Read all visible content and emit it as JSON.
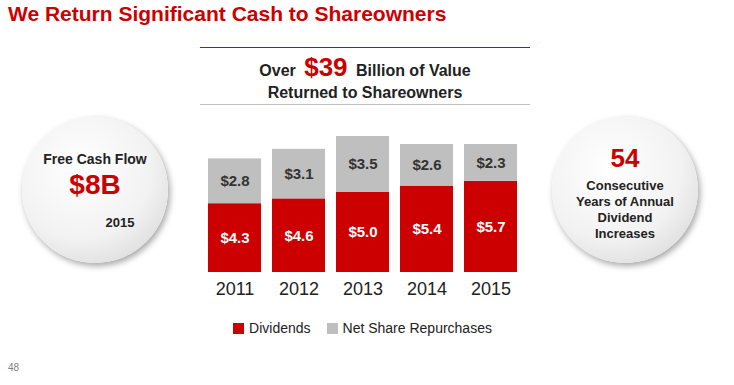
{
  "chart_data": {
    "type": "bar",
    "stacked": true,
    "data_labels": true,
    "tick_labels": "x",
    "title": "We Return Significant Cash to Shareowners",
    "subtitle": {
      "lines": [
        "Over $39 Billion of Value",
        "Returned to Shareowners"
      ],
      "highlight": "$39"
    },
    "categories": [
      "2011",
      "2012",
      "2013",
      "2014",
      "2015"
    ],
    "series": [
      {
        "name": "Dividends",
        "color": "#cc0000",
        "values": [
          4.3,
          4.6,
          5.0,
          5.4,
          5.7
        ],
        "value_labels": [
          "$4.3",
          "$4.6",
          "$5.0",
          "$5.4",
          "$5.7"
        ]
      },
      {
        "name": "Net Share Repurchases",
        "color": "#bfbfbf",
        "values": [
          2.8,
          3.1,
          3.5,
          2.6,
          2.3
        ],
        "value_labels": [
          "$2.8",
          "$3.1",
          "$3.5",
          "$2.6",
          "$2.3"
        ]
      }
    ],
    "ylim": [
      0,
      8.5
    ],
    "yticks": [],
    "legend": "bottom"
  },
  "page": {
    "left_badge": {
      "label": "Free Cash Flow",
      "value": "$8B",
      "year": "2015"
    },
    "right_badge": {
      "value": "54",
      "text": "Consecutive Years of Annual Dividend Increases"
    },
    "page_number": "48"
  }
}
